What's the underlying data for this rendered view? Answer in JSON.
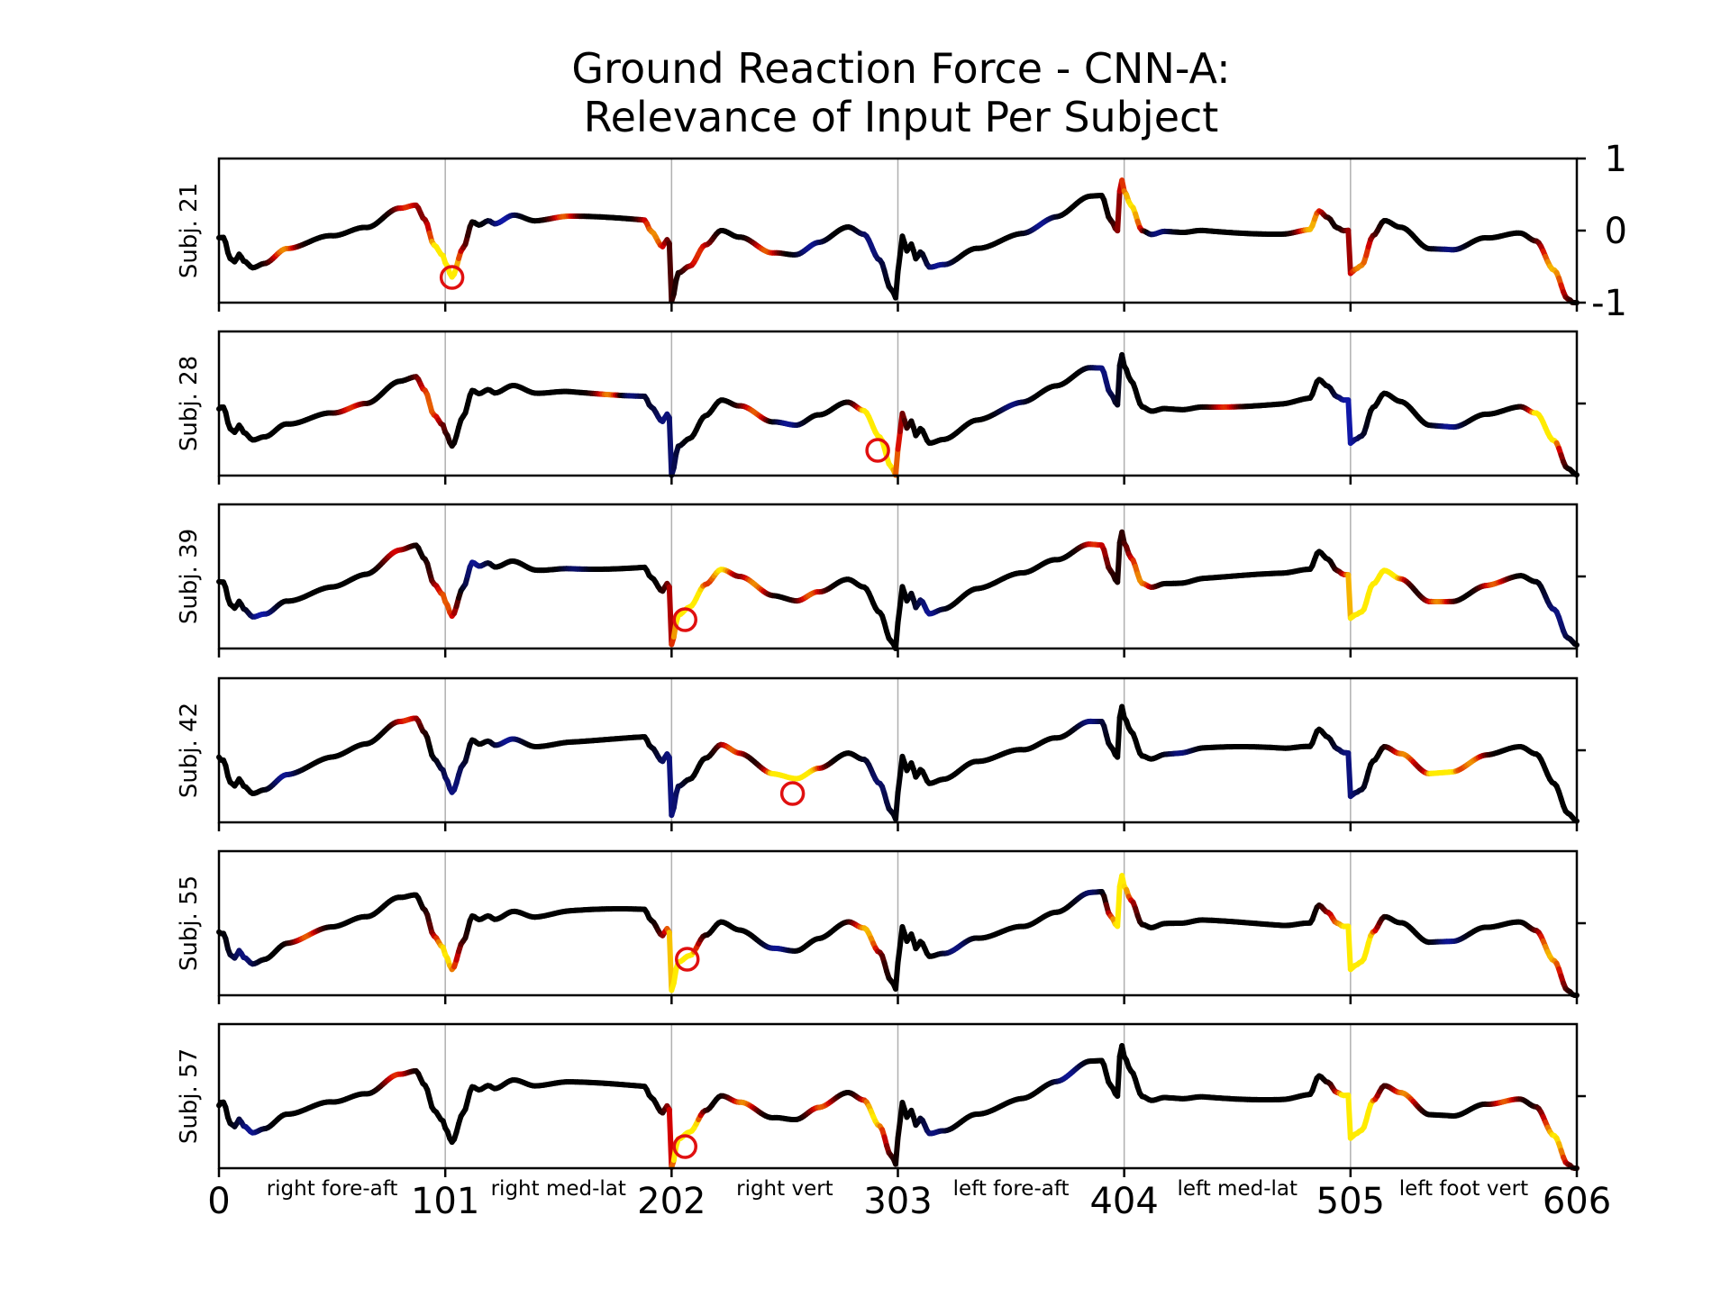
{
  "chart_data": {
    "type": "line",
    "title_line1": "Ground Reaction Force - CNN-A:",
    "title_line2": "Relevance of Input Per Subject",
    "x_ticks": [
      "0",
      "101",
      "202",
      "303",
      "404",
      "505",
      "606"
    ],
    "x_range": [
      0,
      606
    ],
    "y_ticks_top_panel": [
      "1",
      "0",
      "-1"
    ],
    "y_range": [
      -1,
      1
    ],
    "segment_labels": [
      "right fore-aft",
      "right med-lat",
      "right vert",
      "left fore-aft",
      "left med-lat",
      "left foot vert"
    ],
    "colormap": "relevance: blue (negative) - black (neutral) - red - yellow (high)",
    "colors": {
      "negative": "#1a2fd6",
      "neutral": "#000000",
      "positive": "#d40000",
      "high": "#ffe600",
      "marker": "#e01010"
    },
    "subjects": [
      {
        "label": "Subj. 21",
        "max_relevance_x": 104,
        "max_relevance_y": -0.65,
        "relevance_spots": [
          [
            30,
            -0.4,
            8
          ],
          [
            85,
            0.4,
            6
          ],
          [
            100,
            -0.6,
            12
          ],
          [
            104,
            -0.65,
            8
          ],
          [
            128,
            0.15,
            -8
          ],
          [
            155,
            0.25,
            7
          ],
          [
            195,
            -0.3,
            8
          ],
          [
            215,
            -0.5,
            6
          ],
          [
            245,
            -0.3,
            7
          ],
          [
            265,
            -0.3,
            -7
          ],
          [
            292,
            -0.5,
            -6
          ],
          [
            322,
            -0.45,
            -7
          ],
          [
            368,
            0.5,
            -7
          ],
          [
            408,
            0.65,
            10
          ],
          [
            420,
            -0.05,
            -6
          ],
          [
            488,
            0.3,
            9
          ],
          [
            510,
            -0.5,
            8
          ],
          [
            550,
            -0.3,
            -6
          ],
          [
            596,
            -0.7,
            9
          ]
        ]
      },
      {
        "label": "Subj. 28",
        "max_relevance_x": 294,
        "max_relevance_y": -0.65,
        "relevance_spots": [
          [
            60,
            0.2,
            6
          ],
          [
            95,
            0.1,
            7
          ],
          [
            175,
            0.1,
            8
          ],
          [
            185,
            0.1,
            -6
          ],
          [
            200,
            -0.3,
            -6
          ],
          [
            240,
            -0.3,
            7
          ],
          [
            255,
            -0.3,
            -7
          ],
          [
            292,
            -0.5,
            11
          ],
          [
            294,
            -0.65,
            8
          ],
          [
            300,
            -0.8,
            8
          ],
          [
            355,
            -0.3,
            -6
          ],
          [
            395,
            0.5,
            -6
          ],
          [
            450,
            -0.1,
            6
          ],
          [
            505,
            -0.5,
            -8
          ],
          [
            550,
            -0.3,
            -7
          ],
          [
            592,
            -0.5,
            11
          ],
          [
            593,
            -0.6,
            8
          ]
        ]
      },
      {
        "label": "Subj. 39",
        "max_relevance_x": 208,
        "max_relevance_y": -0.6,
        "relevance_spots": [
          [
            20,
            -0.4,
            -8
          ],
          [
            80,
            0.3,
            5
          ],
          [
            102,
            -0.4,
            7
          ],
          [
            115,
            0.1,
            -7
          ],
          [
            160,
            0.1,
            -5
          ],
          [
            208,
            -0.6,
            11
          ],
          [
            212,
            -0.3,
            12
          ],
          [
            225,
            0.2,
            10
          ],
          [
            240,
            -0.3,
            8
          ],
          [
            265,
            -0.2,
            7
          ],
          [
            318,
            -0.4,
            -7
          ],
          [
            392,
            0.5,
            6
          ],
          [
            412,
            0.4,
            8
          ],
          [
            508,
            -0.6,
            11
          ],
          [
            515,
            -0.3,
            12
          ],
          [
            525,
            0.2,
            10
          ],
          [
            545,
            -0.3,
            8
          ],
          [
            570,
            -0.1,
            7
          ],
          [
            598,
            -0.7,
            -6
          ]
        ]
      },
      {
        "label": "Subj. 42",
        "max_relevance_x": 256,
        "max_relevance_y": -0.6,
        "relevance_spots": [
          [
            30,
            -0.3,
            -7
          ],
          [
            85,
            0.5,
            6
          ],
          [
            105,
            -0.3,
            -6
          ],
          [
            130,
            0.2,
            -7
          ],
          [
            202,
            -0.6,
            -6
          ],
          [
            230,
            0.0,
            7
          ],
          [
            250,
            -0.5,
            11
          ],
          [
            256,
            -0.6,
            10
          ],
          [
            265,
            -0.4,
            9
          ],
          [
            295,
            -0.6,
            -5
          ],
          [
            390,
            0.6,
            -6
          ],
          [
            430,
            -0.2,
            -6
          ],
          [
            505,
            -0.5,
            -6
          ],
          [
            530,
            0.0,
            8
          ],
          [
            545,
            -0.5,
            11
          ],
          [
            548,
            -0.6,
            10
          ],
          [
            560,
            -0.4,
            8
          ]
        ]
      },
      {
        "label": "Subj. 55",
        "max_relevance_x": 209,
        "max_relevance_y": -0.5,
        "relevance_spots": [
          [
            12,
            -0.3,
            -6
          ],
          [
            40,
            -0.2,
            7
          ],
          [
            102,
            -0.5,
            10
          ],
          [
            205,
            -0.6,
            9
          ],
          [
            209,
            -0.5,
            11
          ],
          [
            250,
            -0.3,
            -7
          ],
          [
            290,
            -0.5,
            9
          ],
          [
            330,
            -0.2,
            -6
          ],
          [
            390,
            0.5,
            -5
          ],
          [
            403,
            0.5,
            11
          ],
          [
            500,
            0.1,
            6
          ],
          [
            508,
            -0.5,
            11
          ],
          [
            512,
            -0.3,
            9
          ],
          [
            550,
            -0.3,
            -7
          ],
          [
            595,
            -0.6,
            9
          ]
        ]
      },
      {
        "label": "Subj. 57",
        "max_relevance_x": 208,
        "max_relevance_y": -0.7,
        "relevance_spots": [
          [
            15,
            -0.3,
            -7
          ],
          [
            80,
            0.2,
            6
          ],
          [
            208,
            -0.7,
            11
          ],
          [
            210,
            -0.3,
            10
          ],
          [
            235,
            0.0,
            8
          ],
          [
            270,
            -0.3,
            7
          ],
          [
            293,
            -0.6,
            10
          ],
          [
            320,
            -0.3,
            -6
          ],
          [
            380,
            0.5,
            -7
          ],
          [
            505,
            -0.6,
            9
          ],
          [
            508,
            -0.7,
            11
          ],
          [
            512,
            -0.4,
            10
          ],
          [
            530,
            0.0,
            8
          ],
          [
            575,
            -0.2,
            7
          ],
          [
            597,
            -0.7,
            10
          ]
        ]
      }
    ]
  }
}
